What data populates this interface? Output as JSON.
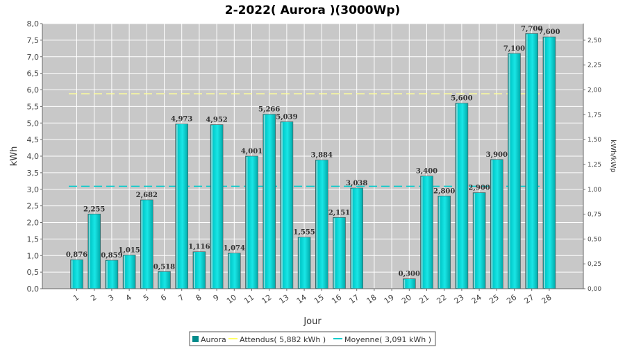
{
  "chart_data": {
    "type": "bar",
    "title": "2-2022( Aurora )(3000Wp)",
    "xlabel": "Jour",
    "ylabel": "kWh",
    "y2label": "kWh/kWp",
    "ylim": [
      0,
      8.0
    ],
    "y2lim": [
      0,
      2.667
    ],
    "yticks": [
      "0,0",
      "0,5",
      "1,0",
      "1,5",
      "2,0",
      "2,5",
      "3,0",
      "3,5",
      "4,0",
      "4,5",
      "5,0",
      "5,5",
      "6,0",
      "6,5",
      "7,0",
      "7,5",
      "8,0"
    ],
    "y2ticks": [
      "0,00",
      "0,25",
      "0,50",
      "0,75",
      "1,00",
      "1,25",
      "1,50",
      "1,75",
      "2,00",
      "2,25",
      "2,50"
    ],
    "categories": [
      "1",
      "2",
      "3",
      "4",
      "5",
      "6",
      "7",
      "8",
      "9",
      "10",
      "11",
      "12",
      "13",
      "14",
      "15",
      "16",
      "17",
      "18",
      "19",
      "20",
      "21",
      "22",
      "23",
      "24",
      "25",
      "26",
      "27",
      "28"
    ],
    "series": [
      {
        "name": "Aurora",
        "values": [
          0.876,
          2.255,
          0.859,
          1.015,
          2.682,
          0.518,
          4.973,
          1.116,
          4.952,
          1.074,
          4.001,
          5.266,
          5.039,
          1.555,
          3.884,
          2.151,
          3.038,
          0,
          0,
          0.3,
          3.4,
          2.8,
          5.6,
          2.9,
          3.9,
          7.1,
          7.7,
          7.6
        ],
        "labels": [
          "0,876",
          "2,255",
          "0,859",
          "1,015",
          "2,682",
          "0,518",
          "4,973",
          "1,116",
          "4,952",
          "1,074",
          "4,001",
          "5,266",
          "5,039",
          "1,555",
          "3,884",
          "2,151",
          "3,038",
          "",
          "",
          "0,300",
          "3,400",
          "2,800",
          "5,600",
          "2,900",
          "3,900",
          "7,100",
          "7,700",
          "7,600"
        ]
      }
    ],
    "reference_lines": [
      {
        "name": "Attendus( 5,882 kWh )",
        "value": 5.882,
        "color": "#ffff99"
      },
      {
        "name": "Moyenne( 3,091 kWh )",
        "value": 3.091,
        "color": "#00cccc"
      }
    ],
    "legend": [
      "Aurora",
      "Attendus( 5,882 kWh )",
      "Moyenne( 3,091 kWh )"
    ],
    "legend_position": "bottom",
    "grid": true,
    "colors": {
      "bar": "#00c0c0",
      "plot_bg": "#c8c8c8",
      "grid": "#ffffff"
    }
  }
}
